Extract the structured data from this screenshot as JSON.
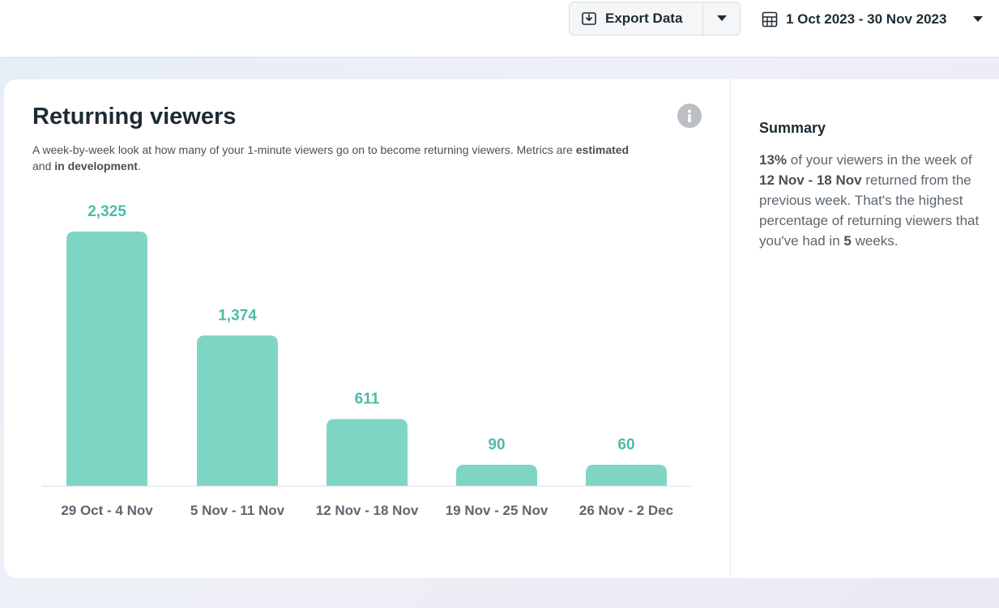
{
  "toolbar": {
    "export_label": "Export Data",
    "export_icon": "download-icon",
    "export_dropdown_icon": "caret-down-icon",
    "date_icon": "calendar-icon",
    "date_range": "1 Oct 2023 - 30 Nov 2023",
    "date_dropdown_icon": "caret-down-icon"
  },
  "card": {
    "title": "Returning viewers",
    "info_icon": "info-icon",
    "description_parts": [
      "A week-by-week look at how many of your 1-minute viewers go on to become returning viewers. Metrics are ",
      "estimated",
      " and ",
      "in development",
      "."
    ]
  },
  "chart_data": {
    "type": "bar",
    "title": "",
    "xlabel": "",
    "ylabel": "",
    "categories": [
      "29 Oct - 4 Nov",
      "5 Nov - 11 Nov",
      "12 Nov - 18 Nov",
      "19 Nov - 25 Nov",
      "26 Nov - 2 Dec"
    ],
    "values": [
      2325,
      1374,
      611,
      90,
      60
    ],
    "value_labels": [
      "2,325",
      "1,374",
      "611",
      "90",
      "60"
    ],
    "grid": false,
    "legend": "none",
    "bar_color": "#7fd5c4",
    "label_color": "#4fbba8"
  },
  "summary": {
    "title": "Summary",
    "text_parts": [
      "13%",
      " of your viewers in the week of ",
      "12 Nov - 18 Nov",
      " returned from the previous week. That's the highest percentage of returning viewers that you've had in ",
      "5",
      " weeks."
    ]
  }
}
